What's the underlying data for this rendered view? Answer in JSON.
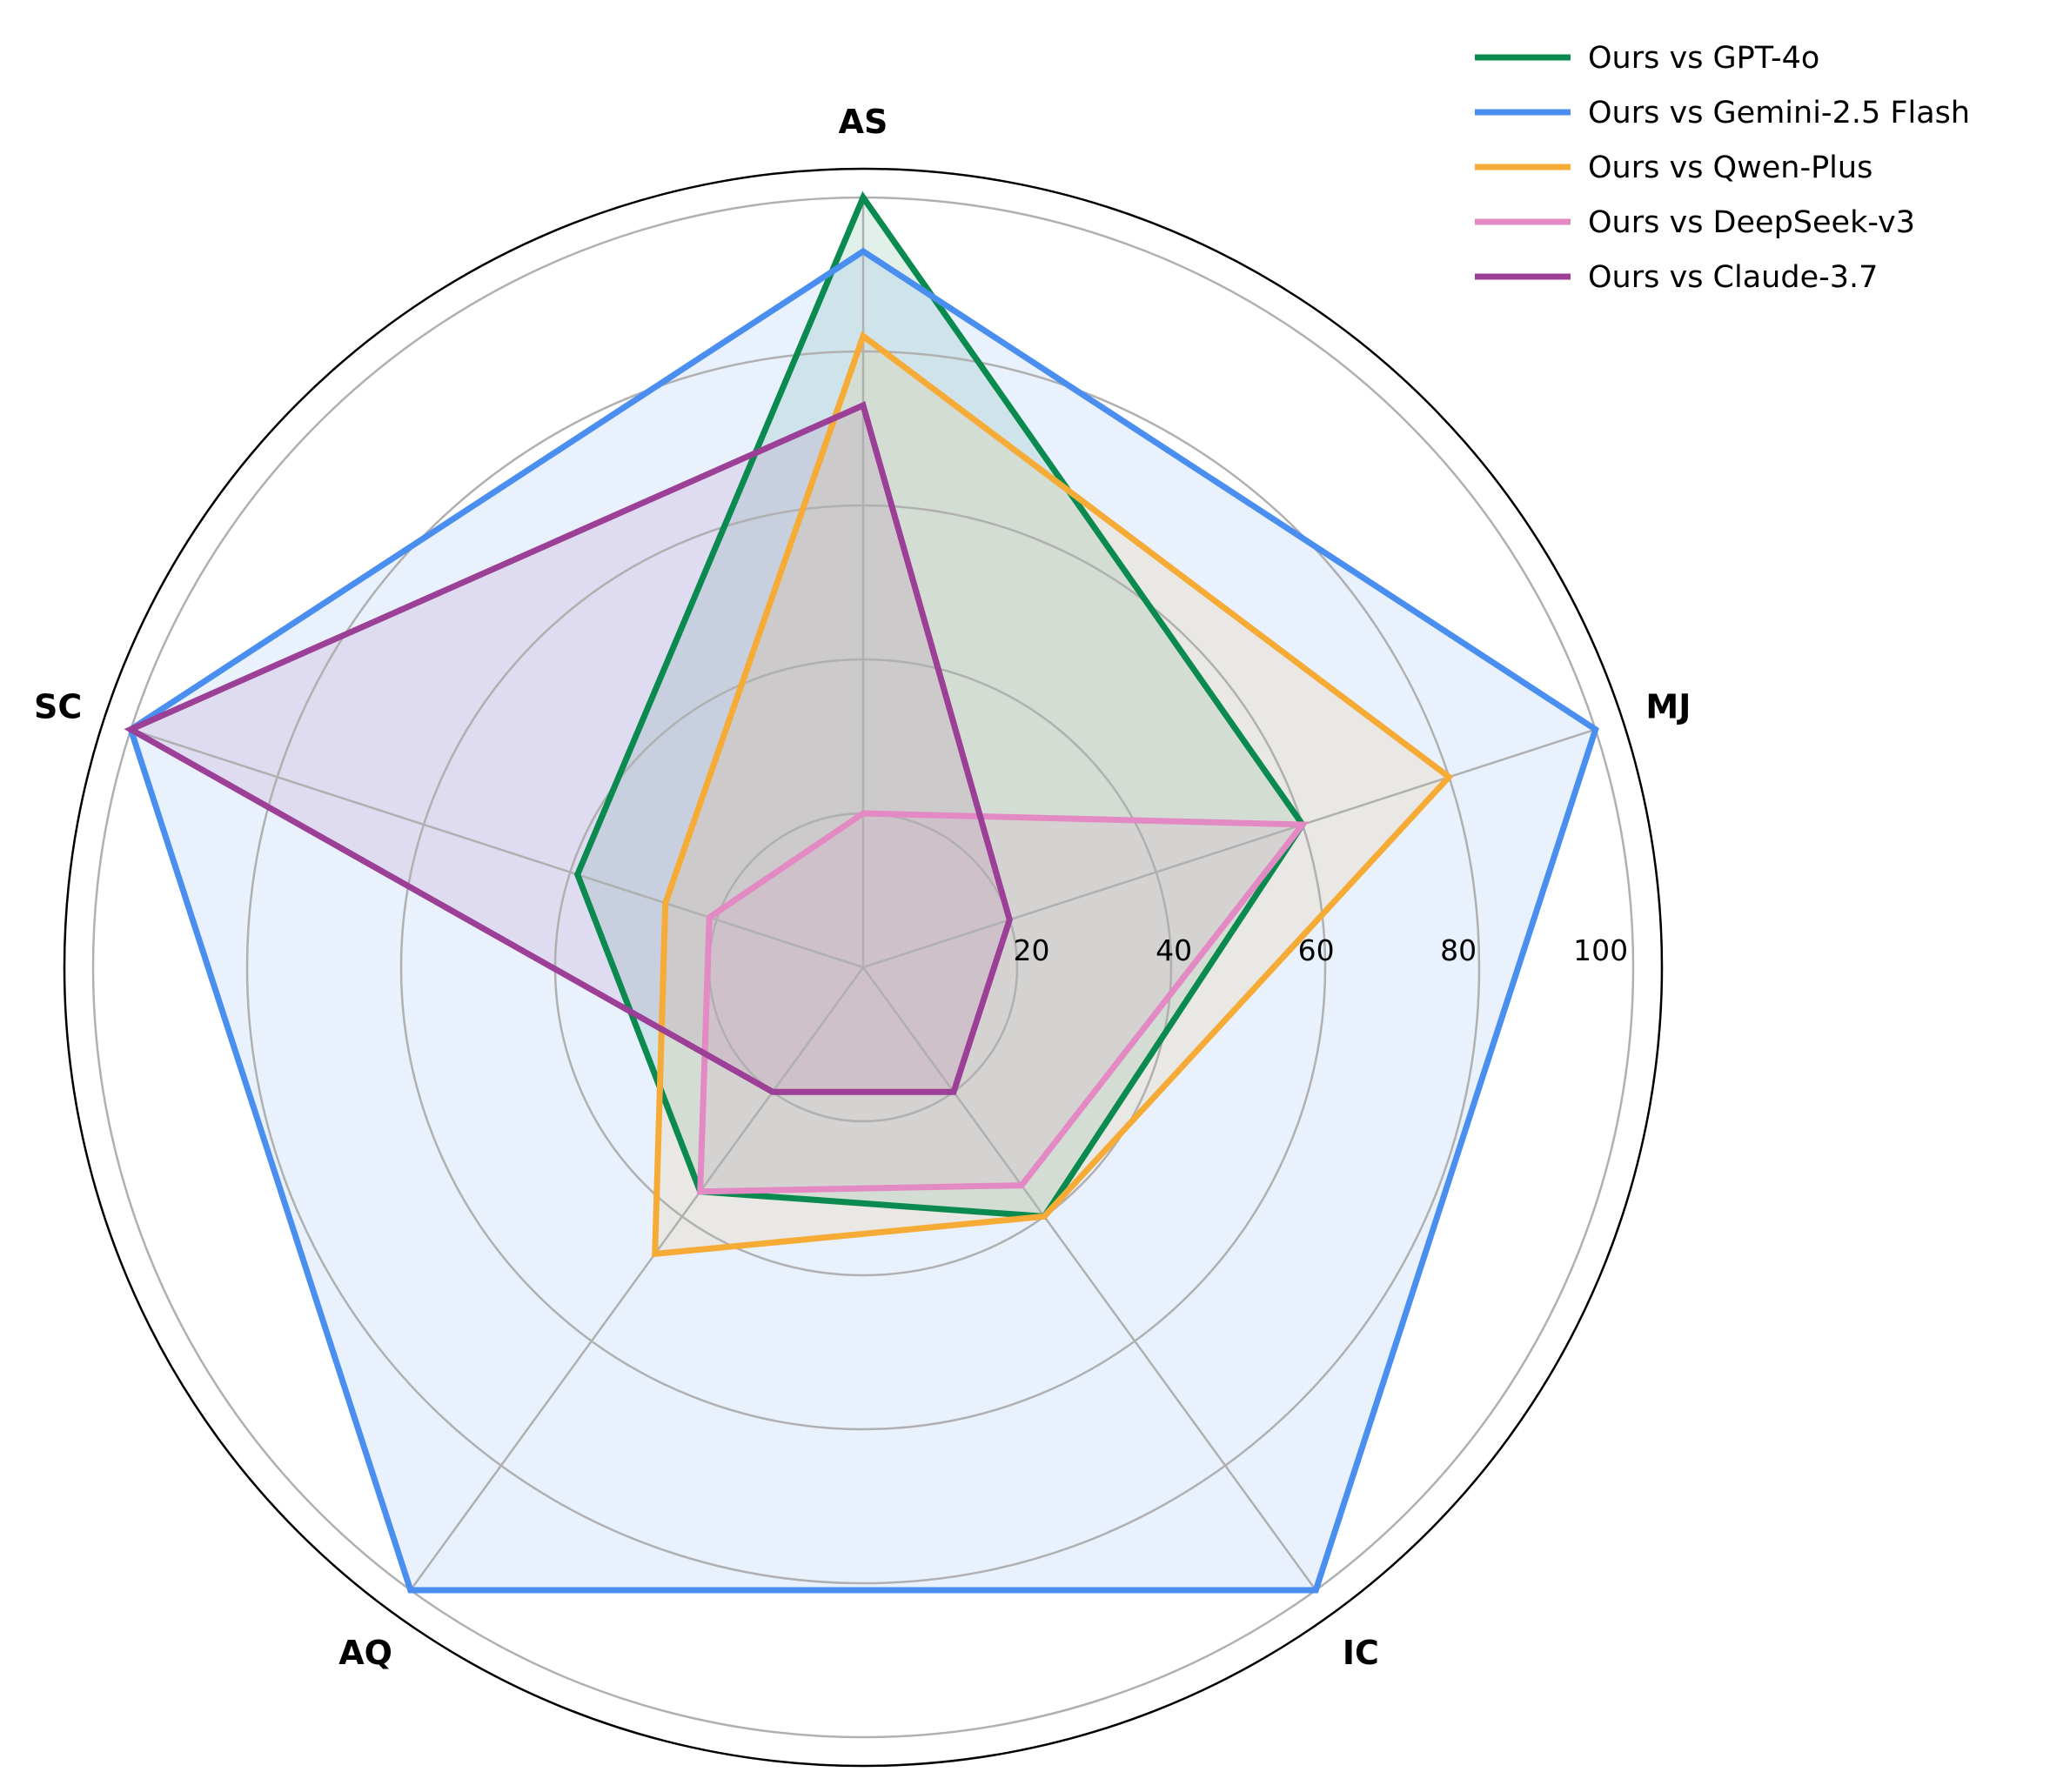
{
  "chart_data": {
    "type": "radar",
    "axes": [
      "AS",
      "MJ",
      "IC",
      "AQ",
      "SC"
    ],
    "rlim": [
      0,
      100
    ],
    "rticks": [
      20,
      40,
      60,
      80,
      100
    ],
    "rtick_labels": [
      "20",
      "40",
      "60",
      "80",
      "100"
    ],
    "grid": true,
    "legend_position": "top-right",
    "series": [
      {
        "name": "Ours vs GPT-4o",
        "color": "#0a8a4f",
        "values": [
          100,
          60,
          40,
          36,
          39
        ]
      },
      {
        "name": "Ours vs Gemini-2.5 Flash",
        "color": "#4a8ff0",
        "values": [
          93,
          100,
          100,
          100,
          100
        ]
      },
      {
        "name": "Ours vs Qwen-Plus",
        "color": "#f5ab35",
        "values": [
          82,
          80,
          40,
          46,
          27
        ]
      },
      {
        "name": "Ours vs DeepSeek-v3",
        "color": "#e389c3",
        "values": [
          20,
          60,
          35,
          36,
          21
        ]
      },
      {
        "name": "Ours vs Claude-3.7",
        "color": "#9c3f96",
        "values": [
          73,
          20,
          20,
          20,
          100
        ]
      }
    ]
  }
}
